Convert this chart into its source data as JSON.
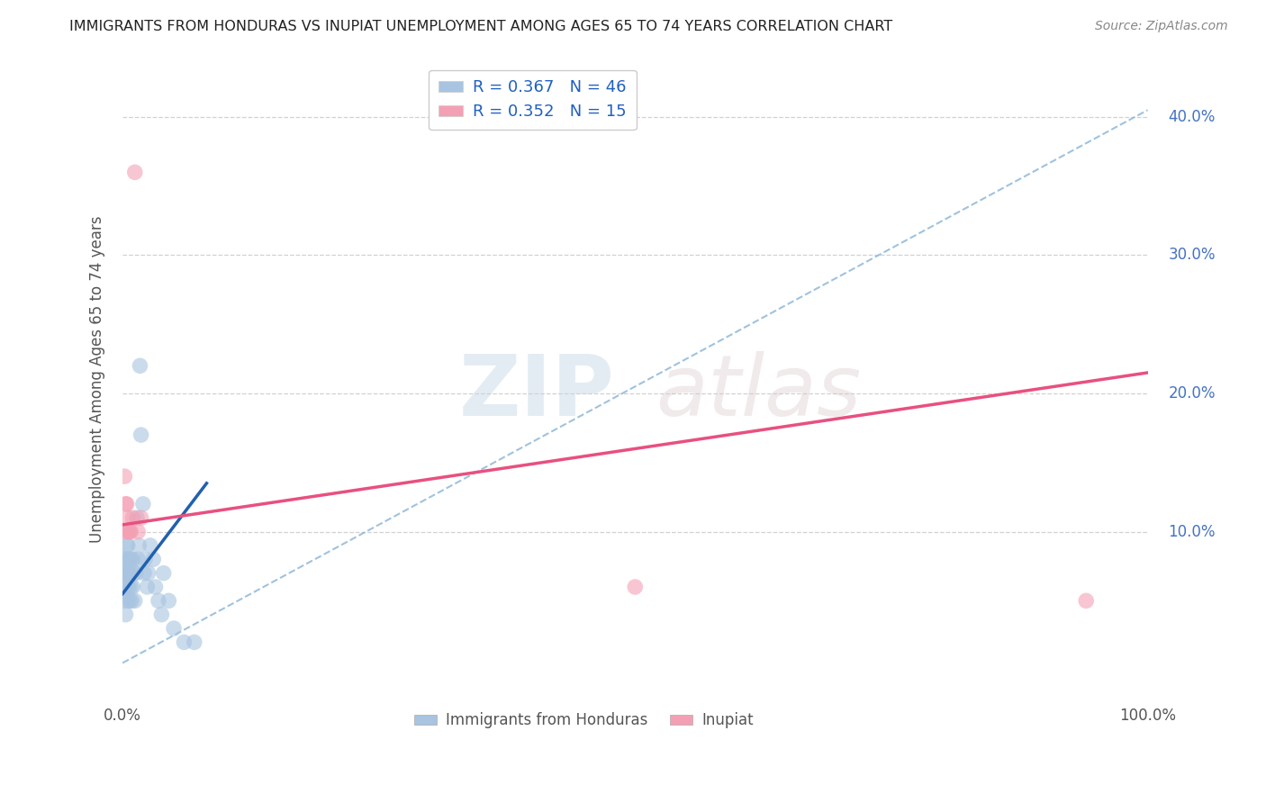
{
  "title": "IMMIGRANTS FROM HONDURAS VS INUPIAT UNEMPLOYMENT AMONG AGES 65 TO 74 YEARS CORRELATION CHART",
  "source": "Source: ZipAtlas.com",
  "ylabel": "Unemployment Among Ages 65 to 74 years",
  "xmin": 0.0,
  "xmax": 1.0,
  "ymin": -0.02,
  "ymax": 0.44,
  "xticks": [
    0.0,
    0.1,
    0.2,
    0.3,
    0.4,
    0.5,
    0.6,
    0.7,
    0.8,
    0.9,
    1.0
  ],
  "xticklabels": [
    "0.0%",
    "",
    "",
    "",
    "",
    "",
    "",
    "",
    "",
    "",
    "100.0%"
  ],
  "yticks": [
    0.1,
    0.2,
    0.3,
    0.4
  ],
  "yticklabels": [
    "10.0%",
    "20.0%",
    "30.0%",
    "40.0%"
  ],
  "R_blue": 0.367,
  "N_blue": 46,
  "R_pink": 0.352,
  "N_pink": 15,
  "blue_color": "#a8c4e0",
  "pink_color": "#f4a0b4",
  "blue_line_color": "#2060b0",
  "pink_line_color": "#e85080",
  "dashed_line_color": "#90b8d8",
  "legend_text_color": "#2060c0",
  "blue_scatter_x": [
    0.001,
    0.001,
    0.002,
    0.002,
    0.003,
    0.003,
    0.003,
    0.004,
    0.004,
    0.005,
    0.005,
    0.005,
    0.006,
    0.006,
    0.006,
    0.007,
    0.007,
    0.008,
    0.008,
    0.009,
    0.009,
    0.01,
    0.01,
    0.011,
    0.012,
    0.013,
    0.014,
    0.015,
    0.016,
    0.017,
    0.018,
    0.02,
    0.021,
    0.022,
    0.024,
    0.025,
    0.027,
    0.03,
    0.032,
    0.035,
    0.038,
    0.04,
    0.045,
    0.05,
    0.06,
    0.07
  ],
  "blue_scatter_y": [
    0.05,
    0.07,
    0.06,
    0.08,
    0.04,
    0.06,
    0.08,
    0.07,
    0.09,
    0.05,
    0.07,
    0.09,
    0.06,
    0.08,
    0.07,
    0.05,
    0.08,
    0.06,
    0.07,
    0.05,
    0.08,
    0.06,
    0.08,
    0.07,
    0.05,
    0.07,
    0.11,
    0.08,
    0.09,
    0.22,
    0.17,
    0.12,
    0.07,
    0.08,
    0.06,
    0.07,
    0.09,
    0.08,
    0.06,
    0.05,
    0.04,
    0.07,
    0.05,
    0.03,
    0.02,
    0.02
  ],
  "pink_scatter_x": [
    0.001,
    0.002,
    0.003,
    0.004,
    0.005,
    0.005,
    0.006,
    0.007,
    0.008,
    0.01,
    0.012,
    0.015,
    0.018,
    0.5,
    0.94
  ],
  "pink_scatter_y": [
    0.1,
    0.14,
    0.12,
    0.12,
    0.1,
    0.11,
    0.1,
    0.1,
    0.1,
    0.11,
    0.36,
    0.1,
    0.11,
    0.06,
    0.05
  ],
  "blue_line_x": [
    0.0,
    0.082
  ],
  "blue_line_y": [
    0.055,
    0.135
  ],
  "pink_line_x": [
    0.0,
    1.0
  ],
  "pink_line_y": [
    0.105,
    0.215
  ],
  "dashed_line_x": [
    0.0,
    1.0
  ],
  "dashed_line_y": [
    0.005,
    0.405
  ],
  "watermark_zip": "ZIP",
  "watermark_atlas": "atlas",
  "background_color": "#ffffff"
}
